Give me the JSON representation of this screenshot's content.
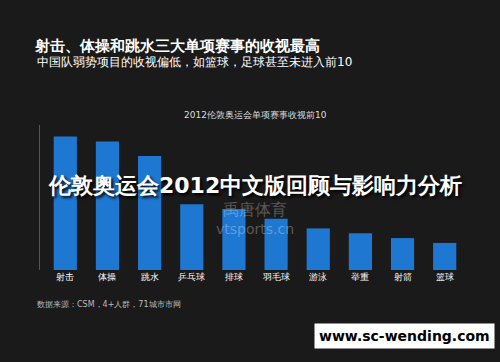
{
  "chart_data": {
    "type": "bar",
    "title": "射击、体操和跳水三大单项赛事的收视最高",
    "subtitle": "中国队弱势项目的收视偏低，如篮球，足球甚至未进入前10",
    "chart_title": "2012伦敦奥运会单项赛事收视前10",
    "categories": [
      "射击",
      "体操",
      "跳水",
      "乒乓球",
      "排球",
      "羽毛球",
      "游泳",
      "举重",
      "射箭",
      "篮球"
    ],
    "values": [
      13.8,
      13.3,
      11.8,
      6.8,
      6.3,
      5.3,
      4.3,
      3.8,
      3.3,
      2.8
    ],
    "color": "#1e78d2",
    "ylim": [
      0,
      15
    ],
    "grid": false,
    "tick_labels": "x",
    "annotations": [
      "伦敦奥运会2012中文版回顾与影响力分析",
      "禹唐体育",
      "vtsports.cn",
      "数据来源：CSM，4+人群，71城市市网",
      "www.sc-wending.com"
    ]
  }
}
